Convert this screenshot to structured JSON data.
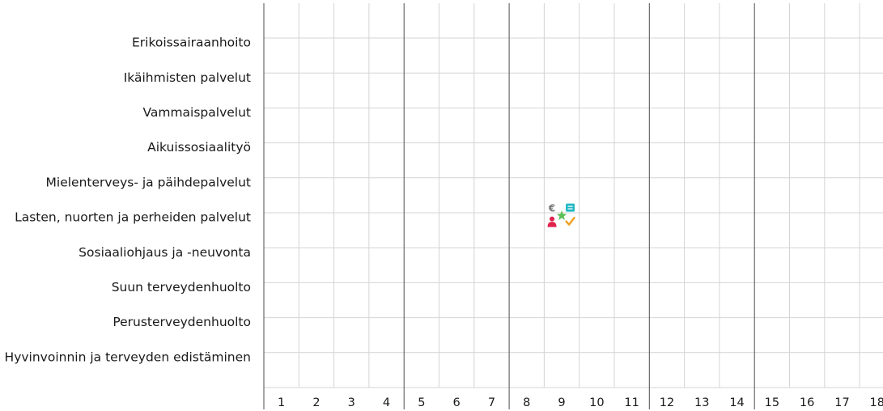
{
  "chart_data": {
    "type": "table",
    "rows": [
      "Erikoissairaanhoito",
      "Ikäihmisten palvelut",
      "Vammaispalvelut",
      "Aikuissosiaalityö",
      "Mielenterveys- ja päihdepalvelut",
      "Lasten, nuorten ja perheiden palvelut",
      "Sosiaaliohjaus ja -neuvonta",
      "Suun terveydenhuolto",
      "Perusterveydenhuolto",
      "Hyvinvoinnin ja terveyden edistäminen"
    ],
    "columns": [
      "1",
      "2",
      "3",
      "4",
      "5",
      "6",
      "7",
      "8",
      "9",
      "10",
      "11",
      "12",
      "13",
      "14",
      "15",
      "16",
      "17",
      "18"
    ],
    "group_dividers_after": [
      4,
      7,
      11,
      14
    ],
    "markers": [
      {
        "row": "Lasten, nuorten ja perheiden palvelut",
        "column": "9",
        "icons": [
          {
            "name": "euro-icon",
            "glyph": "€",
            "color": "#777777"
          },
          {
            "name": "chat-icon",
            "glyph": "≡",
            "color": "#22b8c4"
          },
          {
            "name": "star-icon",
            "glyph": "★",
            "color": "#5cbf55"
          },
          {
            "name": "person-icon",
            "glyph": "●",
            "color": "#e0234d"
          },
          {
            "name": "check-icon",
            "glyph": "✓",
            "color": "#f0a020"
          }
        ]
      }
    ],
    "colors": {
      "grid": "#d4d4d4",
      "divider": "#4d4d4d",
      "text": "#1a1a1a"
    }
  }
}
